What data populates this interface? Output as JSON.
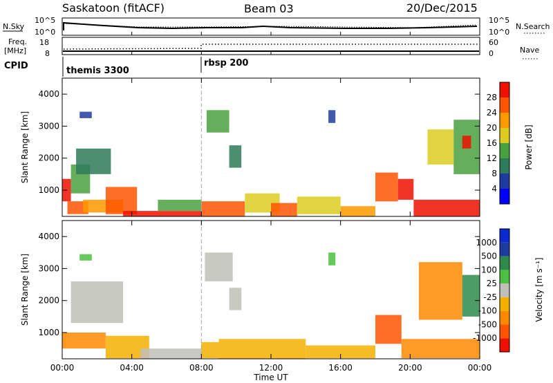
{
  "header": {
    "station": "Saskatoon (fitACF)",
    "beam": "Beam 03",
    "date": "20/Dec/2015"
  },
  "summary": {
    "nsky_label": "N.Sky",
    "nsearch_label": "N.Search",
    "freq_label_1": "Freq.",
    "freq_label_2": "[MHz]",
    "nave_label": "Nave",
    "cpid_label": "CPID",
    "nsky_ticks": [
      "10^5",
      "10^0"
    ],
    "nsearch_ticks": [
      "10^5",
      "10^0"
    ],
    "freq_ticks": [
      "18",
      "8"
    ],
    "nave_ticks": [
      "60",
      "0"
    ]
  },
  "cpid": {
    "segments": [
      {
        "label": "themis 3300",
        "start_hour": 0
      },
      {
        "label": "rbsp 200",
        "start_hour": 8
      }
    ]
  },
  "chart_data": [
    {
      "type": "heatmap",
      "panel": "power",
      "xlabel": "Time UT",
      "ylabel": "Slant Range [km]",
      "xlim": [
        0,
        24
      ],
      "ylim": [
        180,
        4500
      ],
      "x_ticks": [
        "00:00",
        "04:00",
        "08:00",
        "12:00",
        "16:00",
        "20:00",
        "00:00"
      ],
      "y_ticks": [
        1000,
        2000,
        3000,
        4000
      ],
      "colorbar": {
        "label": "Power [dB]",
        "ticks": [
          "28",
          "24",
          "20",
          "16",
          "12",
          "8",
          "4"
        ],
        "colors": [
          "#0000ff",
          "#1e3ca0",
          "#2e7a5a",
          "#4aa040",
          "#dccc22",
          "#ff9900",
          "#ff5500",
          "#ee1100"
        ]
      },
      "regions": [
        {
          "t0": 0.0,
          "t1": 0.5,
          "r0": 650,
          "r1": 1350,
          "level": 7
        },
        {
          "t0": 0.3,
          "t1": 1.5,
          "r0": 250,
          "r1": 650,
          "level": 6
        },
        {
          "t0": 0.5,
          "t1": 1.6,
          "r0": 900,
          "r1": 1800,
          "level": 3
        },
        {
          "t0": 0.8,
          "t1": 2.8,
          "r0": 1500,
          "r1": 2300,
          "level": 2
        },
        {
          "t0": 1.0,
          "t1": 1.7,
          "r0": 3250,
          "r1": 3450,
          "level": 1
        },
        {
          "t0": 1.2,
          "t1": 3.5,
          "r0": 300,
          "r1": 700,
          "level": 5
        },
        {
          "t0": 2.5,
          "t1": 4.3,
          "r0": 250,
          "r1": 1100,
          "level": 6
        },
        {
          "t0": 3.5,
          "t1": 8.0,
          "r0": 180,
          "r1": 350,
          "level": 7
        },
        {
          "t0": 5.5,
          "t1": 8.0,
          "r0": 350,
          "r1": 700,
          "level": 3
        },
        {
          "t0": 8.0,
          "t1": 10.5,
          "r0": 180,
          "r1": 650,
          "level": 6
        },
        {
          "t0": 8.3,
          "t1": 9.6,
          "r0": 2800,
          "r1": 3500,
          "level": 3
        },
        {
          "t0": 9.6,
          "t1": 10.3,
          "r0": 1700,
          "r1": 2400,
          "level": 2
        },
        {
          "t0": 10.5,
          "t1": 12.5,
          "r0": 300,
          "r1": 900,
          "level": 4
        },
        {
          "t0": 12.0,
          "t1": 13.5,
          "r0": 180,
          "r1": 600,
          "level": 6
        },
        {
          "t0": 15.3,
          "t1": 15.7,
          "r0": 3100,
          "r1": 3500,
          "level": 1
        },
        {
          "t0": 13.5,
          "t1": 16.0,
          "r0": 250,
          "r1": 800,
          "level": 4
        },
        {
          "t0": 16.0,
          "t1": 18.0,
          "r0": 180,
          "r1": 500,
          "level": 5
        },
        {
          "t0": 18.0,
          "t1": 19.3,
          "r0": 650,
          "r1": 1550,
          "level": 6
        },
        {
          "t0": 19.3,
          "t1": 20.2,
          "r0": 700,
          "r1": 1350,
          "level": 7
        },
        {
          "t0": 20.2,
          "t1": 24.0,
          "r0": 180,
          "r1": 700,
          "level": 7
        },
        {
          "t0": 21.0,
          "t1": 22.5,
          "r0": 1800,
          "r1": 2900,
          "level": 4
        },
        {
          "t0": 22.5,
          "t1": 24.0,
          "r0": 1500,
          "r1": 3200,
          "level": 3
        },
        {
          "t0": 23.0,
          "t1": 23.5,
          "r0": 2300,
          "r1": 2700,
          "level": 7
        }
      ]
    },
    {
      "type": "heatmap",
      "panel": "velocity",
      "xlabel": "Time UT",
      "ylabel": "Slant Range [km]",
      "xlim": [
        0,
        24
      ],
      "ylim": [
        180,
        4500
      ],
      "x_ticks": [
        "00:00",
        "04:00",
        "08:00",
        "12:00",
        "16:00",
        "20:00",
        "00:00"
      ],
      "y_ticks": [
        1000,
        2000,
        3000,
        4000
      ],
      "colorbar": {
        "label": "Velocity [m s⁻¹]",
        "ticks": [
          "1000",
          "500",
          "100",
          "25",
          "-25",
          "-100",
          "-500",
          "-1000"
        ],
        "colors": [
          "#ee1100",
          "#ff5500",
          "#ff8800",
          "#f4b000",
          "#c0c0b8",
          "#4cc040",
          "#2e8a4a",
          "#1e3ca0",
          "#0a2ad0"
        ]
      },
      "regions": [
        {
          "t0": 0.0,
          "t1": 2.5,
          "r0": 500,
          "r1": 1000,
          "level": 2
        },
        {
          "t0": 0.5,
          "t1": 3.5,
          "r0": 1300,
          "r1": 2600,
          "level": 4
        },
        {
          "t0": 1.0,
          "t1": 1.7,
          "r0": 3250,
          "r1": 3450,
          "level": 5
        },
        {
          "t0": 2.5,
          "t1": 5.0,
          "r0": 200,
          "r1": 900,
          "level": 3
        },
        {
          "t0": 4.5,
          "t1": 8.0,
          "r0": 180,
          "r1": 500,
          "level": 4
        },
        {
          "t0": 8.0,
          "t1": 9.0,
          "r0": 200,
          "r1": 700,
          "level": 3
        },
        {
          "t0": 8.2,
          "t1": 9.8,
          "r0": 2600,
          "r1": 3500,
          "level": 4
        },
        {
          "t0": 9.6,
          "t1": 10.3,
          "r0": 1700,
          "r1": 2400,
          "level": 4
        },
        {
          "t0": 9.0,
          "t1": 14.0,
          "r0": 180,
          "r1": 800,
          "level": 3
        },
        {
          "t0": 15.3,
          "t1": 15.7,
          "r0": 3100,
          "r1": 3500,
          "level": 5
        },
        {
          "t0": 14.0,
          "t1": 18.0,
          "r0": 200,
          "r1": 600,
          "level": 3
        },
        {
          "t0": 18.0,
          "t1": 19.5,
          "r0": 650,
          "r1": 1550,
          "level": 1
        },
        {
          "t0": 19.5,
          "t1": 24.0,
          "r0": 200,
          "r1": 800,
          "level": 2
        },
        {
          "t0": 20.5,
          "t1": 23.0,
          "r0": 1400,
          "r1": 3200,
          "level": 2
        },
        {
          "t0": 23.0,
          "t1": 24.0,
          "r0": 1500,
          "r1": 2800,
          "level": 6
        }
      ]
    }
  ]
}
